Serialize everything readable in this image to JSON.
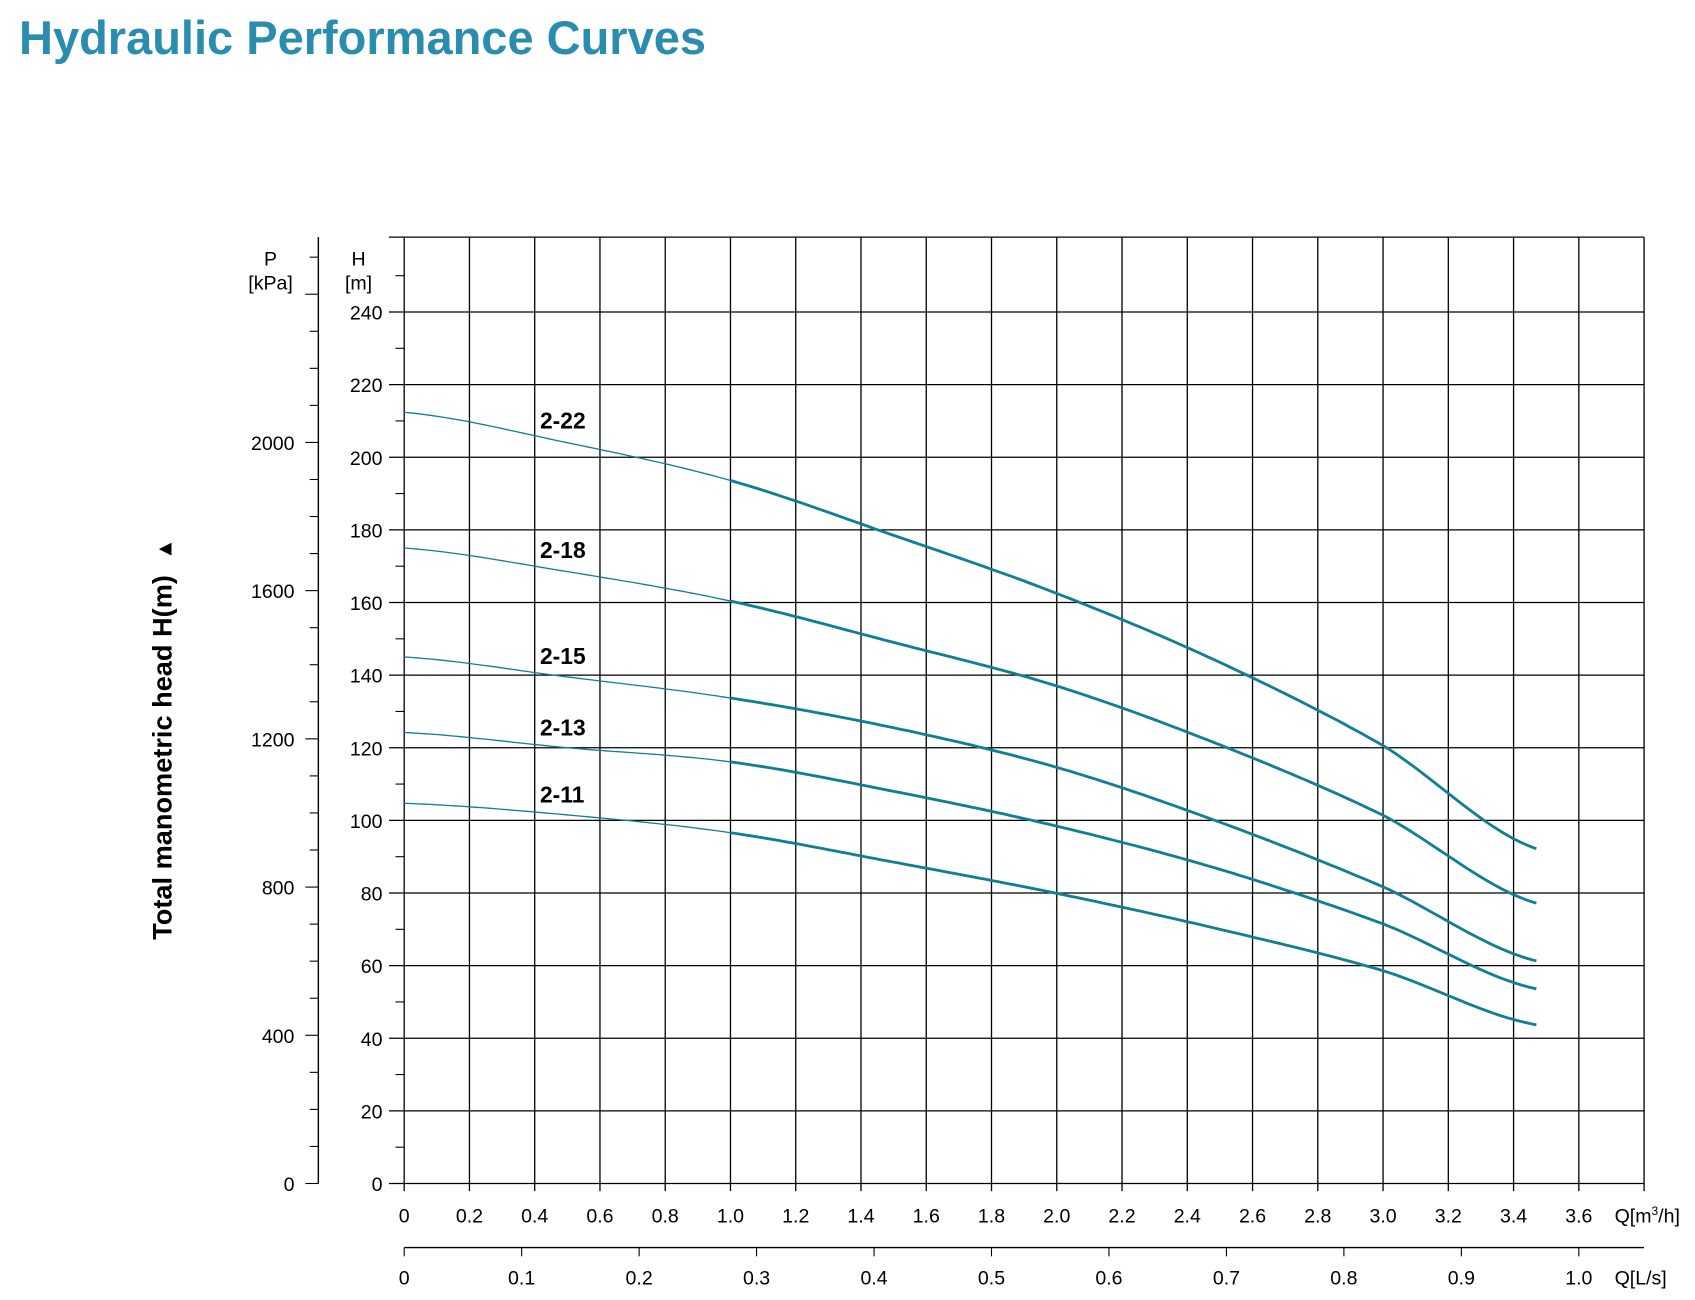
{
  "title": "Hydraulic Performance Curves",
  "colors": {
    "title": "#2a8daf",
    "curve": "#117f93",
    "grid": "#000000"
  },
  "chart_data": {
    "type": "line",
    "title": "Hydraulic Performance Curves",
    "ylabel": "Total manometric head H(m)",
    "ylabel_arrow": "▲",
    "y_axis": {
      "label": "H",
      "unit": "[m]",
      "range": [
        0,
        260
      ],
      "ticks": [
        0,
        20,
        40,
        60,
        80,
        100,
        120,
        140,
        160,
        180,
        200,
        220,
        240
      ]
    },
    "p_axis": {
      "label": "P",
      "unit": "[kPa]",
      "ticks": [
        0,
        400,
        800,
        1200,
        1600,
        2000
      ],
      "kpa_per_m": 9.8
    },
    "x_axis": {
      "label": "Q[m³/h]",
      "label_base": "Q[m",
      "label_sup": "3",
      "label_end": "/h]",
      "range": [
        0,
        3.8
      ],
      "ticks": [
        "0",
        "0.2",
        "0.4",
        "0.6",
        "0.8",
        "1.0",
        "1.2",
        "1.4",
        "1.6",
        "1.8",
        "2.0",
        "2.2",
        "2.4",
        "2.6",
        "2.8",
        "3.0",
        "3.2",
        "3.4",
        "3.6"
      ]
    },
    "x2_axis": {
      "label": "Q[L/s]",
      "ticks": [
        "0",
        "0.1",
        "0.2",
        "0.3",
        "0.4",
        "0.5",
        "0.6",
        "0.7",
        "0.8",
        "0.9",
        "1.0"
      ]
    },
    "grid": true,
    "x": [
      0,
      0.5,
      1.0,
      1.5,
      2.0,
      2.5,
      3.0,
      3.47
    ],
    "series": [
      {
        "name": "2-22",
        "values": [
          212.4,
          204,
          193.6,
          178.5,
          162.5,
          143.5,
          120.6,
          92.2
        ]
      },
      {
        "name": "2-18",
        "values": [
          175,
          168.5,
          160.4,
          149,
          137,
          120.8,
          101.4,
          77.2
        ]
      },
      {
        "name": "2-15",
        "values": [
          145,
          139.5,
          133.7,
          125.5,
          114.6,
          99.5,
          81.7,
          61.3
        ]
      },
      {
        "name": "2-13",
        "values": [
          124.2,
          120,
          116.1,
          108,
          98.4,
          86.5,
          71.5,
          53.6
        ]
      },
      {
        "name": "2-11",
        "values": [
          104.7,
          101.5,
          96.6,
          88.5,
          79.9,
          70,
          58.6,
          43.7
        ]
      }
    ]
  }
}
